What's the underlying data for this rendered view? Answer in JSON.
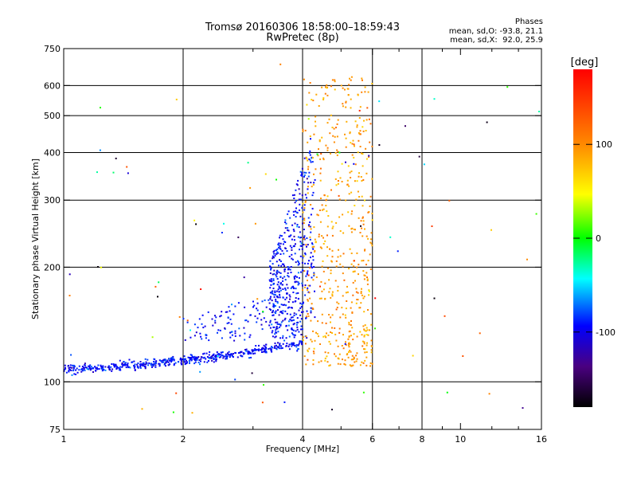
{
  "title": "Tromsø 20160306 18:58:00–18:59:43",
  "subtitle": "RwPretec (8p)",
  "phases": {
    "heading": "Phases",
    "line_o": "mean, sd,O: -93.8, 21.1",
    "line_x": "mean, sd,X:  92.0, 25.9"
  },
  "colorbar": {
    "label": "[deg]",
    "ticks": [
      "100",
      "0",
      "-100"
    ]
  },
  "chart_data": {
    "type": "scatter",
    "xlabel": "Frequency [MHz]",
    "ylabel": "Stationary phase Virtual Height [km]",
    "xscale": "log",
    "yscale": "log",
    "xlim": [
      1,
      16
    ],
    "ylim": [
      75,
      750
    ],
    "xticks": [
      1,
      2,
      4,
      6,
      8,
      10,
      16
    ],
    "yticks": [
      75,
      100,
      200,
      300,
      400,
      500,
      600,
      750
    ],
    "x_gridlines": [
      2,
      4,
      6,
      8
    ],
    "y_gridlines": [
      100,
      200,
      300,
      400,
      500,
      600
    ],
    "color_scale": {
      "quantity": "phase",
      "unit": "deg",
      "range": [
        -180,
        180
      ]
    },
    "groups": [
      {
        "description": "O-mode trace, E-layer",
        "x_range": [
          1.0,
          4.0
        ],
        "height_range": [
          105,
          128
        ],
        "phase_mean": -93.8,
        "phase_sd": 21.1
      },
      {
        "description": "O-mode trace, F-layer rise",
        "x_range": [
          3.3,
          4.3
        ],
        "height_range": [
          130,
          480
        ],
        "phase_mean": -93.8,
        "phase_sd": 21.1
      },
      {
        "description": "X-mode echoes",
        "x_range": [
          4.0,
          6.0
        ],
        "height_range": [
          110,
          640
        ],
        "phase_mean": 92.0,
        "phase_sd": 25.9
      }
    ]
  }
}
